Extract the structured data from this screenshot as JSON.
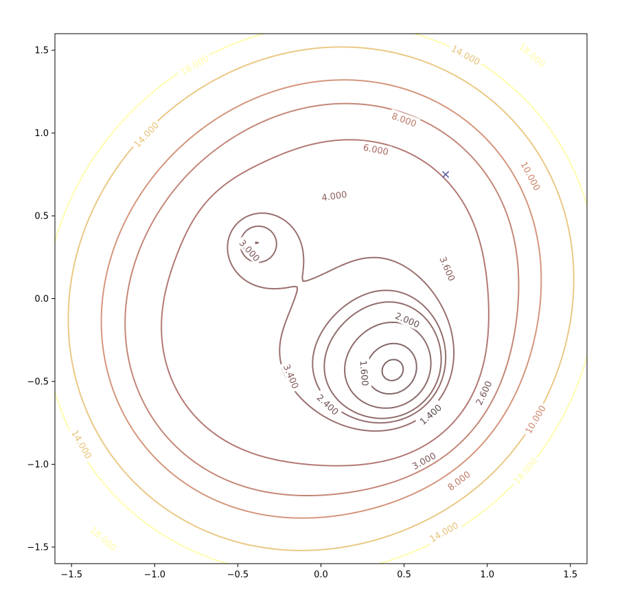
{
  "chart_data": {
    "type": "contour",
    "title": "",
    "xlabel": "",
    "ylabel": "",
    "xlim": [
      -1.6,
      1.6
    ],
    "ylim": [
      -1.6,
      1.6
    ],
    "grid": false,
    "x_ticks": [
      -1.5,
      -1.0,
      -0.5,
      0.0,
      0.5,
      1.0,
      1.5
    ],
    "y_ticks": [
      -1.5,
      -1.0,
      -0.5,
      0.0,
      0.5,
      1.0,
      1.5
    ],
    "x_tick_labels": [
      "−1.5",
      "−1.0",
      "−0.5",
      "0.0",
      "0.5",
      "1.0",
      "1.5"
    ],
    "y_tick_labels": [
      "−1.5",
      "−1.0",
      "−0.5",
      "0.0",
      "0.5",
      "1.0",
      "1.5"
    ],
    "levels": [
      1.4,
      1.6,
      2.0,
      2.4,
      2.6,
      3.0,
      3.4,
      3.6,
      4.0,
      6.0,
      8.0,
      10.0,
      14.0,
      18.0
    ],
    "colormap": "pink",
    "alpha": 0.6,
    "minima": [
      {
        "x": 0.55,
        "y": -0.55,
        "value": 1.3
      },
      {
        "x": -0.43,
        "y": 0.38,
        "value": 2.9
      }
    ],
    "saddle": {
      "x": -0.05,
      "y": 0.05,
      "value": 3.6
    },
    "contour_labels": [
      {
        "text": "3.000",
        "x": -0.43,
        "y": 0.29
      },
      {
        "text": "4.000",
        "x": 0.08,
        "y": 0.62
      },
      {
        "text": "6.000",
        "x": 0.33,
        "y": 0.9
      },
      {
        "text": "8.000",
        "x": 0.5,
        "y": 1.08
      },
      {
        "text": "10.000",
        "x": 1.26,
        "y": 0.74
      },
      {
        "text": "14.000",
        "x": 0.87,
        "y": 1.47
      },
      {
        "text": "18.000",
        "x": 1.27,
        "y": 1.47
      },
      {
        "text": "14.000",
        "x": -1.05,
        "y": 0.99
      },
      {
        "text": "18.000",
        "x": -0.76,
        "y": 1.41
      },
      {
        "text": "3.600",
        "x": 0.76,
        "y": 0.18
      },
      {
        "text": "2.000",
        "x": 0.52,
        "y": -0.13
      },
      {
        "text": "1.600",
        "x": 0.26,
        "y": -0.45
      },
      {
        "text": "1.400",
        "x": 0.66,
        "y": -0.7
      },
      {
        "text": "2.600",
        "x": 0.98,
        "y": -0.57
      },
      {
        "text": "3.000",
        "x": 0.62,
        "y": -0.98
      },
      {
        "text": "2.400",
        "x": 0.04,
        "y": -0.64
      },
      {
        "text": "3.400",
        "x": -0.18,
        "y": -0.47
      },
      {
        "text": "8.000",
        "x": 0.83,
        "y": -1.1
      },
      {
        "text": "10.000",
        "x": 1.29,
        "y": -0.73
      },
      {
        "text": "14.000",
        "x": 0.74,
        "y": -1.41
      },
      {
        "text": "18.000",
        "x": 1.23,
        "y": -1.04
      },
      {
        "text": "14.000",
        "x": -1.44,
        "y": -0.88
      },
      {
        "text": "18.000",
        "x": -1.31,
        "y": -1.45
      }
    ],
    "marker": {
      "x": 0.75,
      "y": 0.75,
      "symbol": "x",
      "color": "#5b5ba6"
    }
  }
}
